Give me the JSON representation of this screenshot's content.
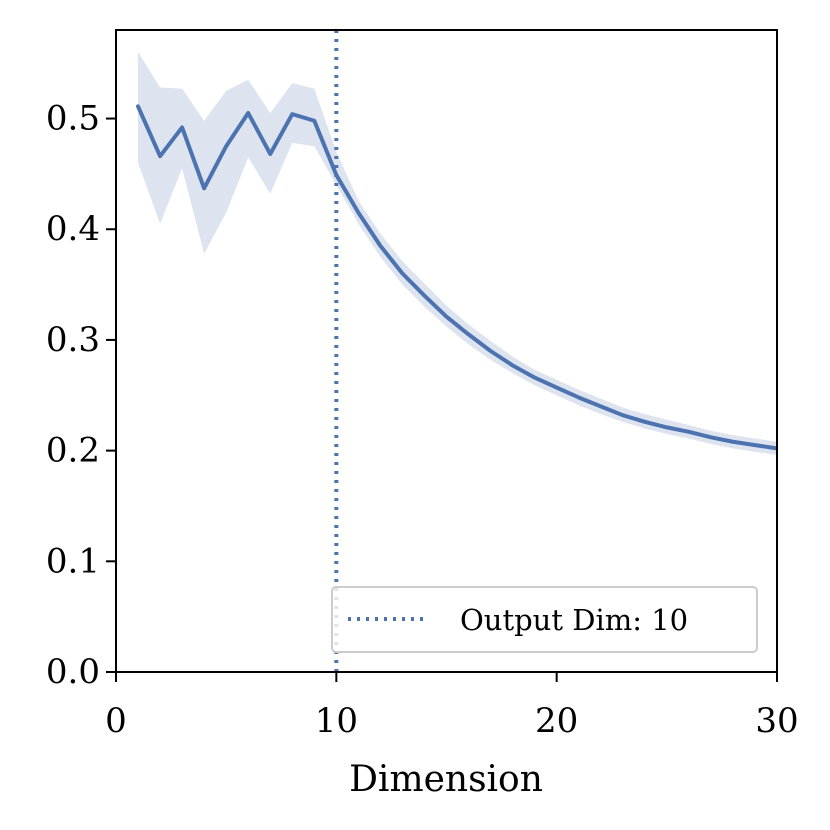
{
  "chart_data": {
    "type": "line",
    "xlabel": "Dimension",
    "ylabel": "",
    "xlim": [
      0,
      30
    ],
    "ylim": [
      0,
      0.58
    ],
    "x_ticks": [
      0,
      10,
      20,
      30
    ],
    "x_tick_labels": [
      "0",
      "10",
      "20",
      "30"
    ],
    "y_ticks": [
      0.0,
      0.1,
      0.2,
      0.3,
      0.4,
      0.5
    ],
    "y_tick_labels": [
      "0.0",
      "0.1",
      "0.2",
      "0.3",
      "0.4",
      "0.5"
    ],
    "grid": false,
    "legend_position": "bottom-right",
    "series": [
      {
        "color": "#4c72b0",
        "band_color": "#dde4ef",
        "x": [
          1,
          2,
          3,
          4,
          5,
          6,
          7,
          8,
          9,
          10,
          11,
          12,
          13,
          14,
          15,
          16,
          17,
          18,
          19,
          20,
          21,
          22,
          23,
          24,
          25,
          26,
          27,
          28,
          29,
          30
        ],
        "y": [
          0.511,
          0.466,
          0.492,
          0.437,
          0.475,
          0.505,
          0.468,
          0.504,
          0.498,
          0.449,
          0.415,
          0.385,
          0.36,
          0.34,
          0.321,
          0.305,
          0.29,
          0.277,
          0.266,
          0.257,
          0.248,
          0.24,
          0.232,
          0.226,
          0.221,
          0.217,
          0.212,
          0.208,
          0.205,
          0.202
        ],
        "lower": [
          0.46,
          0.405,
          0.455,
          0.378,
          0.415,
          0.465,
          0.432,
          0.478,
          0.475,
          0.44,
          0.405,
          0.375,
          0.35,
          0.33,
          0.312,
          0.296,
          0.282,
          0.27,
          0.259,
          0.25,
          0.241,
          0.233,
          0.226,
          0.22,
          0.215,
          0.211,
          0.206,
          0.202,
          0.199,
          0.196
        ],
        "upper": [
          0.56,
          0.528,
          0.527,
          0.498,
          0.525,
          0.535,
          0.505,
          0.532,
          0.527,
          0.47,
          0.426,
          0.396,
          0.371,
          0.351,
          0.331,
          0.314,
          0.299,
          0.285,
          0.273,
          0.264,
          0.255,
          0.247,
          0.239,
          0.233,
          0.228,
          0.223,
          0.218,
          0.214,
          0.211,
          0.208
        ]
      }
    ],
    "vline": {
      "x": 10,
      "color": "#4c72b0",
      "style": "dotted",
      "label": "Output Dim: 10"
    }
  }
}
